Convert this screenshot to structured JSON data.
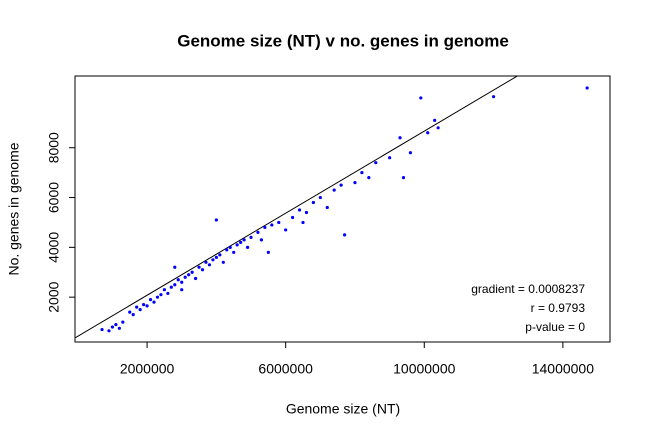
{
  "chart_data": {
    "type": "scatter",
    "title": "Genome size (NT) v no. genes in genome",
    "x_label": "Genome size (NT)",
    "y_label": "No. genes in genome",
    "annotations": [
      "gradient = 0.0008237",
      "r = 0.9793",
      "p-value = 0"
    ],
    "trend_line": {
      "slope": 0.0008237,
      "intercept": 430,
      "color": "#000000"
    },
    "xlim": [
      -80000,
      15360000
    ],
    "ylim": [
      200,
      10880
    ],
    "xticks": [
      2000000,
      6000000,
      10000000,
      14000000
    ],
    "yticks": [
      2000,
      4000,
      6000,
      8000
    ],
    "series": [
      {
        "color": "#0000ff",
        "x": [
          700000,
          900000,
          1000000,
          1100000,
          1200000,
          1300000,
          1500000,
          1600000,
          1700000,
          1800000,
          1900000,
          2000000,
          2100000,
          2200000,
          2300000,
          2400000,
          2500000,
          2600000,
          2700000,
          2800000,
          2900000,
          3000000,
          3100000,
          3200000,
          3300000,
          3400000,
          3500000,
          3600000,
          3700000,
          3800000,
          3900000,
          4000000,
          4100000,
          4200000,
          4300000,
          4400000,
          4500000,
          4600000,
          4700000,
          4800000,
          4900000,
          5000000,
          5200000,
          5300000,
          5400000,
          5600000,
          5800000,
          6000000,
          6200000,
          6400000,
          6600000,
          6800000,
          7000000,
          7200000,
          7400000,
          7600000,
          7700000,
          8000000,
          8200000,
          8400000,
          8600000,
          9000000,
          9300000,
          9400000,
          9600000,
          9900000,
          10100000,
          10300000,
          10400000,
          4000000,
          3000000,
          5500000,
          6500000,
          12000000,
          14700000,
          2800000
        ],
        "values": [
          700,
          650,
          800,
          900,
          750,
          1000,
          1400,
          1300,
          1600,
          1500,
          1700,
          1650,
          1900,
          1800,
          2000,
          2100,
          2300,
          2150,
          2400,
          2500,
          2700,
          2600,
          2800,
          2900,
          3000,
          2750,
          3200,
          3100,
          3400,
          3300,
          3500,
          3600,
          3700,
          3400,
          3900,
          4000,
          3800,
          4100,
          4200,
          4300,
          4000,
          4400,
          4600,
          4300,
          4800,
          4900,
          5000,
          4700,
          5200,
          5500,
          5400,
          5800,
          6000,
          5600,
          6300,
          6500,
          4500,
          6600,
          7000,
          6800,
          7400,
          7600,
          8400,
          6800,
          7800,
          10000,
          8600,
          9100,
          8800,
          5100,
          2300,
          3800,
          5000,
          10050,
          10400,
          3200
        ]
      }
    ]
  }
}
